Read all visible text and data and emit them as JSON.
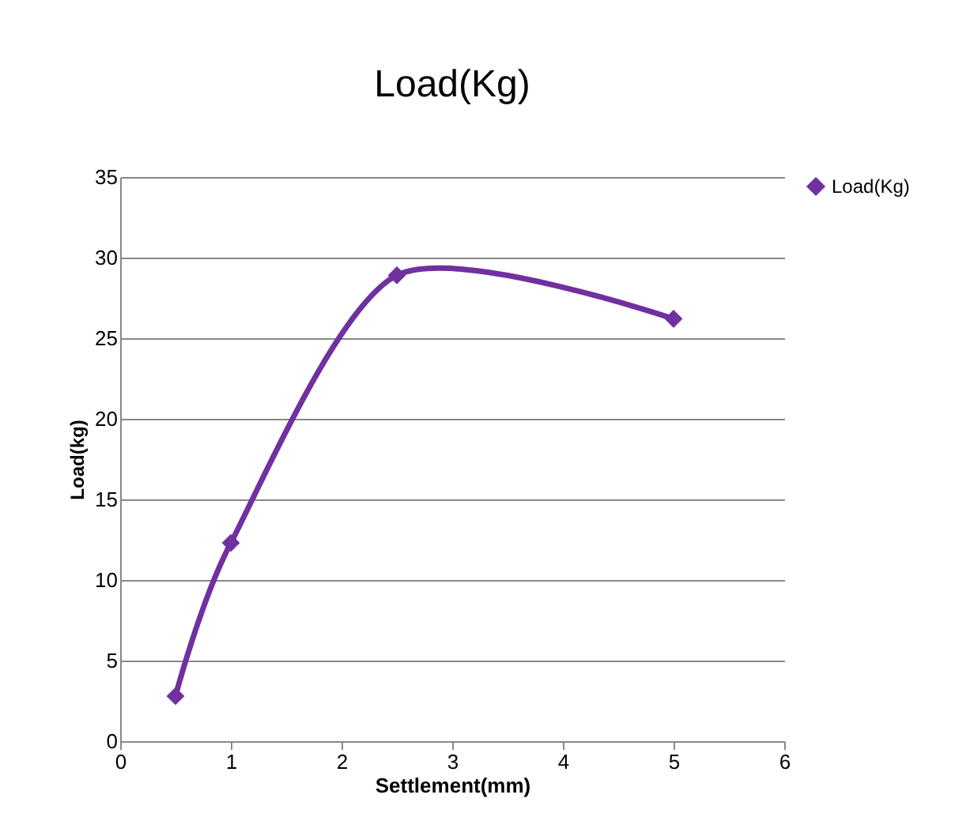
{
  "chart_data": {
    "type": "line",
    "title": "Load(Kg)",
    "xlabel": "Settlement(mm)",
    "ylabel": "Load(kg)",
    "x": [
      0.5,
      1,
      2.5,
      5
    ],
    "series": [
      {
        "name": "Load(Kg)",
        "color": "#7030a0",
        "values": [
          2.8,
          12.3,
          28.9,
          26.2
        ]
      }
    ],
    "xlim": [
      0,
      6
    ],
    "xticks": [
      0,
      1,
      2,
      3,
      4,
      5,
      6
    ],
    "ylim": [
      0,
      35
    ],
    "yticks": [
      0,
      5,
      10,
      15,
      20,
      25,
      30,
      35
    ],
    "grid": "y",
    "legend": "right",
    "marker": "diamond",
    "line_style": "solid"
  }
}
